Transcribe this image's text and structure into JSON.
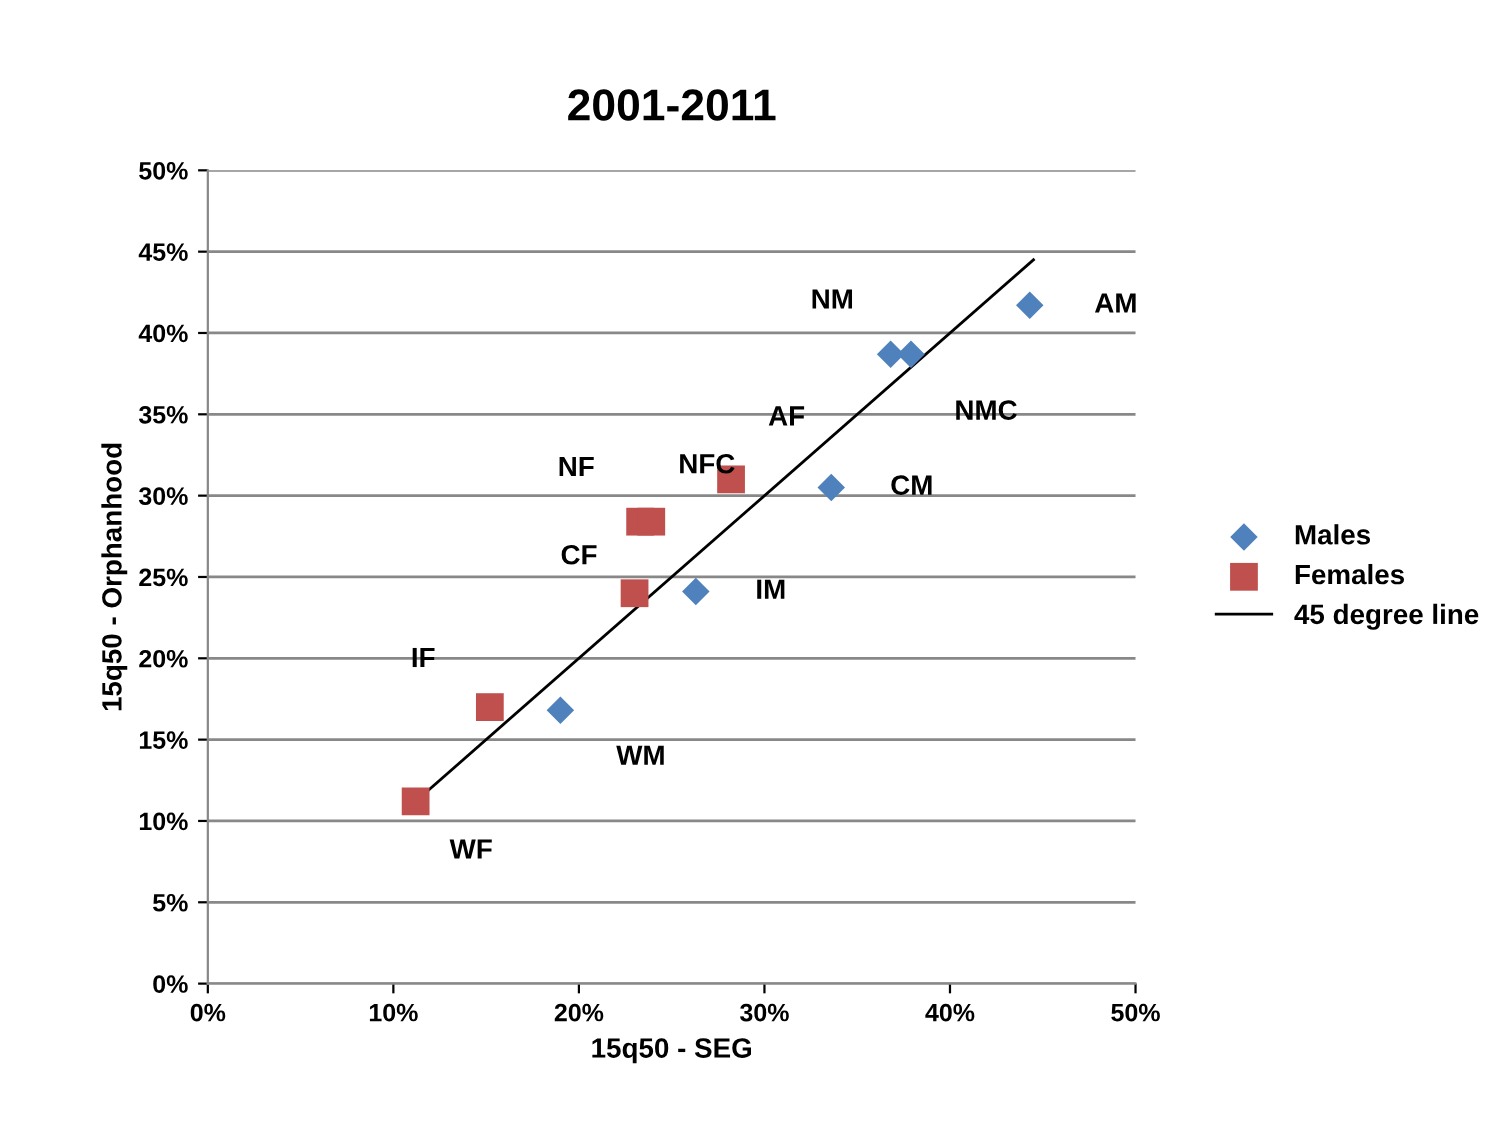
{
  "chart_data": {
    "type": "scatter",
    "title": "2001-2011",
    "xlabel": "15q50 - SEG",
    "ylabel": "15q50 - Orphanhood",
    "xlim": [
      0,
      50
    ],
    "ylim": [
      0,
      50
    ],
    "xticks": [
      {
        "value": 0,
        "label": "0%"
      },
      {
        "value": 10,
        "label": "10%"
      },
      {
        "value": 20,
        "label": "20%"
      },
      {
        "value": 30,
        "label": "30%"
      },
      {
        "value": 40,
        "label": "40%"
      },
      {
        "value": 50,
        "label": "50%"
      }
    ],
    "yticks": [
      {
        "value": 0,
        "label": "0%"
      },
      {
        "value": 5,
        "label": "5%"
      },
      {
        "value": 10,
        "label": "10%"
      },
      {
        "value": 15,
        "label": "15%"
      },
      {
        "value": 20,
        "label": "20%"
      },
      {
        "value": 25,
        "label": "25%"
      },
      {
        "value": 30,
        "label": "30%"
      },
      {
        "value": 35,
        "label": "35%"
      },
      {
        "value": 40,
        "label": "40%"
      },
      {
        "value": 45,
        "label": "45%"
      },
      {
        "value": 50,
        "label": "50%"
      }
    ],
    "grid": "y",
    "legend": "right",
    "series": [
      {
        "name": "Males",
        "marker": "diamond",
        "color": "#4f81bd",
        "x": [
          44.3,
          36.8,
          37.9,
          33.6,
          26.3,
          19.0
        ],
        "values": [
          41.7,
          38.7,
          38.7,
          30.5,
          24.1,
          16.8
        ]
      },
      {
        "name": "Females",
        "marker": "square",
        "color": "#c0504d",
        "x": [
          11.2,
          15.2,
          23.0,
          23.3,
          23.9,
          28.2
        ],
        "values": [
          11.2,
          17.0,
          24.0,
          28.4,
          28.4,
          31.0
        ]
      },
      {
        "name": "45 degree line",
        "type": "line",
        "marker": "none",
        "line_style": "solid",
        "color": "#000000",
        "x": [
          11.7,
          44.5
        ],
        "values": [
          11.7,
          44.5
        ]
      }
    ],
    "annotations": [
      {
        "text": "AM",
        "x": 44.3,
        "y": 41.7
      },
      {
        "text": "NM",
        "x": 36.8,
        "y": 38.7
      },
      {
        "text": "NMC",
        "x": 37.9,
        "y": 38.7
      },
      {
        "text": "CM",
        "x": 33.6,
        "y": 30.5
      },
      {
        "text": "IM",
        "x": 26.3,
        "y": 24.1
      },
      {
        "text": "WM",
        "x": 19.0,
        "y": 16.8
      },
      {
        "text": "WF",
        "x": 11.2,
        "y": 11.2
      },
      {
        "text": "IF",
        "x": 15.2,
        "y": 17.0
      },
      {
        "text": "CF",
        "x": 23.0,
        "y": 24.0
      },
      {
        "text": "NF",
        "x": 23.3,
        "y": 28.4
      },
      {
        "text": "NFC",
        "x": 23.9,
        "y": 28.4
      },
      {
        "text": "AF",
        "x": 28.2,
        "y": 31.0
      }
    ]
  }
}
